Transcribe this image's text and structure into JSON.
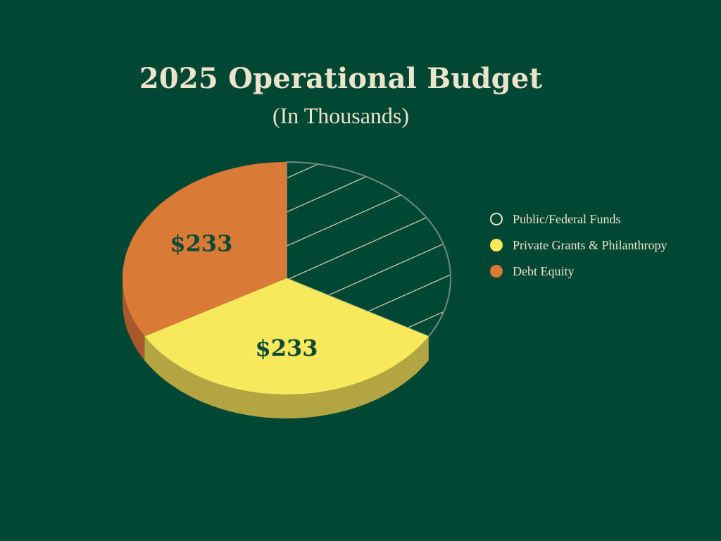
{
  "chart_data": {
    "type": "pie",
    "title": "2025 Operational Budget",
    "subtitle": "(In Thousands)",
    "series": [
      {
        "name": "Public/Federal Funds",
        "value": 233,
        "label": "",
        "color": "#004833",
        "pattern": "hatch",
        "edge": "#e8dcc0"
      },
      {
        "name": "Private Grants & Philanthropy",
        "value": 233,
        "label": "$233",
        "color": "#f8e85c",
        "side_color": "#b2a542"
      },
      {
        "name": "Debt Equity",
        "value": 233,
        "label": "$233",
        "color": "#da7a37",
        "side_color": "#a8582a"
      }
    ],
    "legend_position": "right",
    "style": "3d",
    "label_color": "#0b4a34"
  }
}
